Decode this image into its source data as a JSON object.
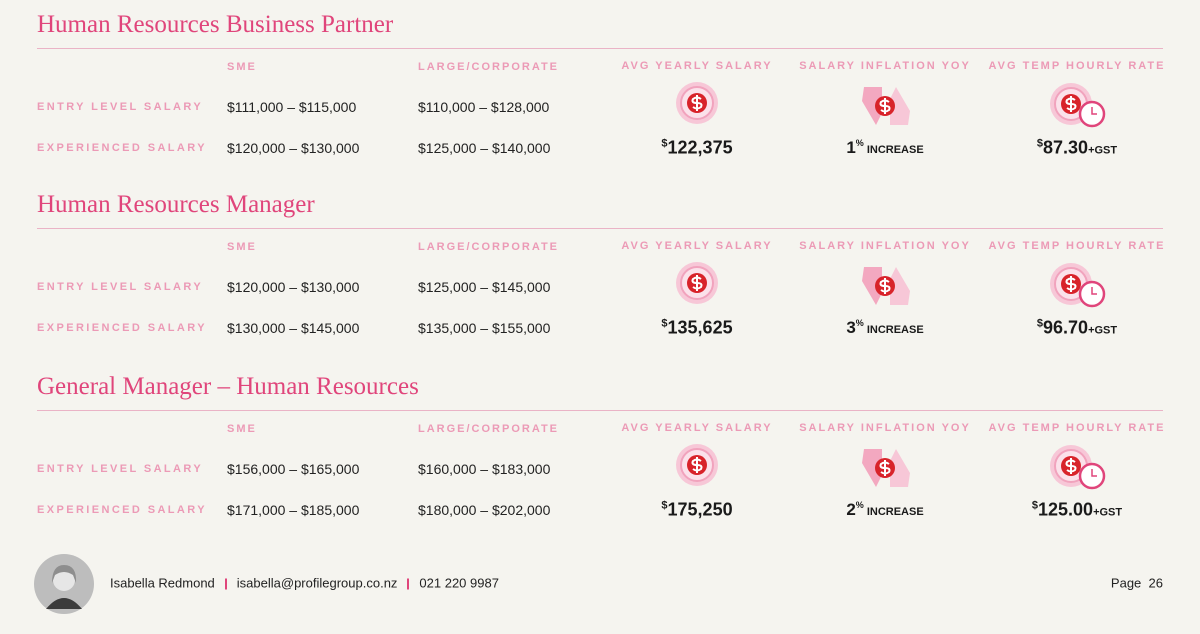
{
  "sections": [
    {
      "title": "Human Resources Business Partner",
      "header": {
        "sme": "SME",
        "large": "LARGE/CORPORATE",
        "avg": "AVG YEARLY SALARY",
        "inflation": "SALARY INFLATION YOY",
        "hourly": "AVG TEMP HOURLY RATE"
      },
      "rows": [
        {
          "label": "ENTRY LEVEL SALARY",
          "sme": "$111,000 – $115,000",
          "large": "$110,000 – $128,000"
        },
        {
          "label": "EXPERIENCED SALARY",
          "sme": "$120,000 – $130,000",
          "large": "$125,000 – $140,000"
        }
      ],
      "avg_symbol": "$",
      "avg": "122,375",
      "inflation_value": "1",
      "inflation_unit": "%",
      "inflation_label": "INCREASE",
      "hourly_symbol": "$",
      "hourly": "87.30",
      "hourly_suffix": "+GST"
    },
    {
      "title": "Human Resources Manager",
      "header": {
        "sme": "SME",
        "large": "LARGE/CORPORATE",
        "avg": "AVG YEARLY SALARY",
        "inflation": "SALARY INFLATION YOY",
        "hourly": "AVG TEMP HOURLY RATE"
      },
      "rows": [
        {
          "label": "ENTRY LEVEL SALARY",
          "sme": "$120,000 – $130,000",
          "large": "$125,000 – $145,000"
        },
        {
          "label": "EXPERIENCED SALARY",
          "sme": "$130,000 – $145,000",
          "large": "$135,000 – $155,000"
        }
      ],
      "avg_symbol": "$",
      "avg": "135,625",
      "inflation_value": "3",
      "inflation_unit": "%",
      "inflation_label": "INCREASE",
      "hourly_symbol": "$",
      "hourly": "96.70",
      "hourly_suffix": "+GST"
    },
    {
      "title": "General Manager – Human Resources",
      "header": {
        "sme": "SME",
        "large": "LARGE/CORPORATE",
        "avg": "AVG YEARLY SALARY",
        "inflation": "SALARY INFLATION YOY",
        "hourly": "AVG TEMP HOURLY RATE"
      },
      "rows": [
        {
          "label": "ENTRY LEVEL SALARY",
          "sme": "$156,000 – $165,000",
          "large": "$160,000 – $183,000"
        },
        {
          "label": "EXPERIENCED SALARY",
          "sme": "$171,000 – $185,000",
          "large": "$180,000 – $202,000"
        }
      ],
      "avg_symbol": "$",
      "avg": "175,250",
      "inflation_value": "2",
      "inflation_unit": "%",
      "inflation_label": "INCREASE",
      "hourly_symbol": "$",
      "hourly": "125.00",
      "hourly_suffix": "+GST"
    }
  ],
  "footer": {
    "name": "Isabella Redmond",
    "email": "isabella@profilegroup.co.nz",
    "phone": "021 220 9987",
    "page_label": "Page",
    "page_number": "26"
  }
}
